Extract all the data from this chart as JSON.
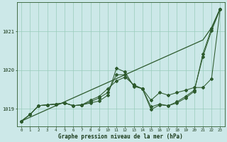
{
  "xlabel": "Graphe pression niveau de la mer (hPa)",
  "x_ticks": [
    0,
    1,
    2,
    3,
    4,
    5,
    6,
    7,
    8,
    9,
    10,
    11,
    12,
    13,
    14,
    15,
    16,
    17,
    18,
    19,
    20,
    21,
    22,
    23
  ],
  "ylim": [
    1018.55,
    1021.75
  ],
  "yticks": [
    1019,
    1020,
    1021
  ],
  "background_color": "#cce8e8",
  "grid_color": "#99ccbb",
  "line_color": "#2d5a2d",
  "series_diagonal": [
    1018.68,
    1018.78,
    1018.88,
    1018.98,
    1019.08,
    1019.18,
    1019.28,
    1019.38,
    1019.48,
    1019.58,
    1019.68,
    1019.78,
    1019.88,
    1019.98,
    1020.08,
    1020.18,
    1020.28,
    1020.38,
    1020.48,
    1020.58,
    1020.68,
    1020.78,
    1021.1,
    1021.6
  ],
  "series1": [
    1018.68,
    1018.85,
    1019.08,
    1019.1,
    1019.12,
    1019.15,
    1019.08,
    1019.1,
    1019.15,
    1019.2,
    1019.35,
    1020.05,
    1019.95,
    1019.58,
    1019.52,
    1018.98,
    1019.1,
    1019.08,
    1019.15,
    1019.28,
    1019.45,
    1020.42,
    1021.08,
    1021.58
  ],
  "series2": [
    1018.68,
    1018.85,
    1019.08,
    1019.1,
    1019.12,
    1019.15,
    1019.08,
    1019.1,
    1019.22,
    1019.32,
    1019.52,
    1019.72,
    1019.82,
    1019.62,
    1019.52,
    1019.22,
    1019.42,
    1019.35,
    1019.42,
    1019.48,
    1019.55,
    1019.55,
    1019.78,
    1021.58
  ],
  "series3": [
    1018.68,
    1018.85,
    1019.08,
    1019.1,
    1019.12,
    1019.15,
    1019.08,
    1019.1,
    1019.18,
    1019.28,
    1019.42,
    1019.88,
    1019.88,
    1019.6,
    1019.52,
    1019.05,
    1019.12,
    1019.08,
    1019.18,
    1019.32,
    1019.48,
    1020.35,
    1021.02,
    1021.58
  ]
}
